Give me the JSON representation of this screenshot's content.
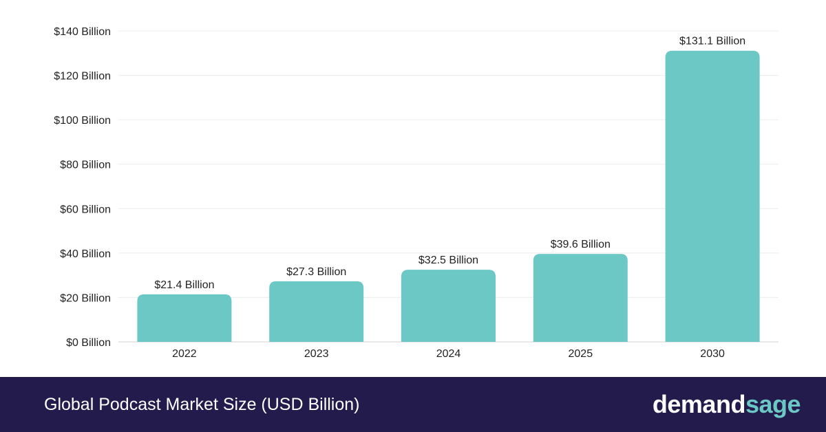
{
  "chart_data": {
    "type": "bar",
    "categories": [
      "2022",
      "2023",
      "2024",
      "2025",
      "2030"
    ],
    "values": [
      21.4,
      27.3,
      32.5,
      39.6,
      131.1
    ],
    "data_labels": [
      "$21.4 Billion",
      "$27.3 Billion",
      "$32.5 Billion",
      "$39.6 Billion",
      "$131.1 Billion"
    ],
    "y_ticks": [
      0,
      20,
      40,
      60,
      80,
      100,
      120,
      140
    ],
    "y_tick_labels": [
      "$0 Billion",
      "$20 Billion",
      "$40 Billion",
      "$60 Billion",
      "$80 Billion",
      "$100 Billion",
      "$120 Billion",
      "$140 Billion"
    ],
    "ylim": [
      0,
      140
    ],
    "grid": true,
    "legend": "none",
    "bar_color": "#6cc8c4"
  },
  "footer": {
    "title": "Global Podcast Market Size (USD Billion)",
    "background": "#221b4b"
  },
  "logo": {
    "part1": "demand",
    "part2": "sage",
    "accent": "#6cc8c4"
  }
}
